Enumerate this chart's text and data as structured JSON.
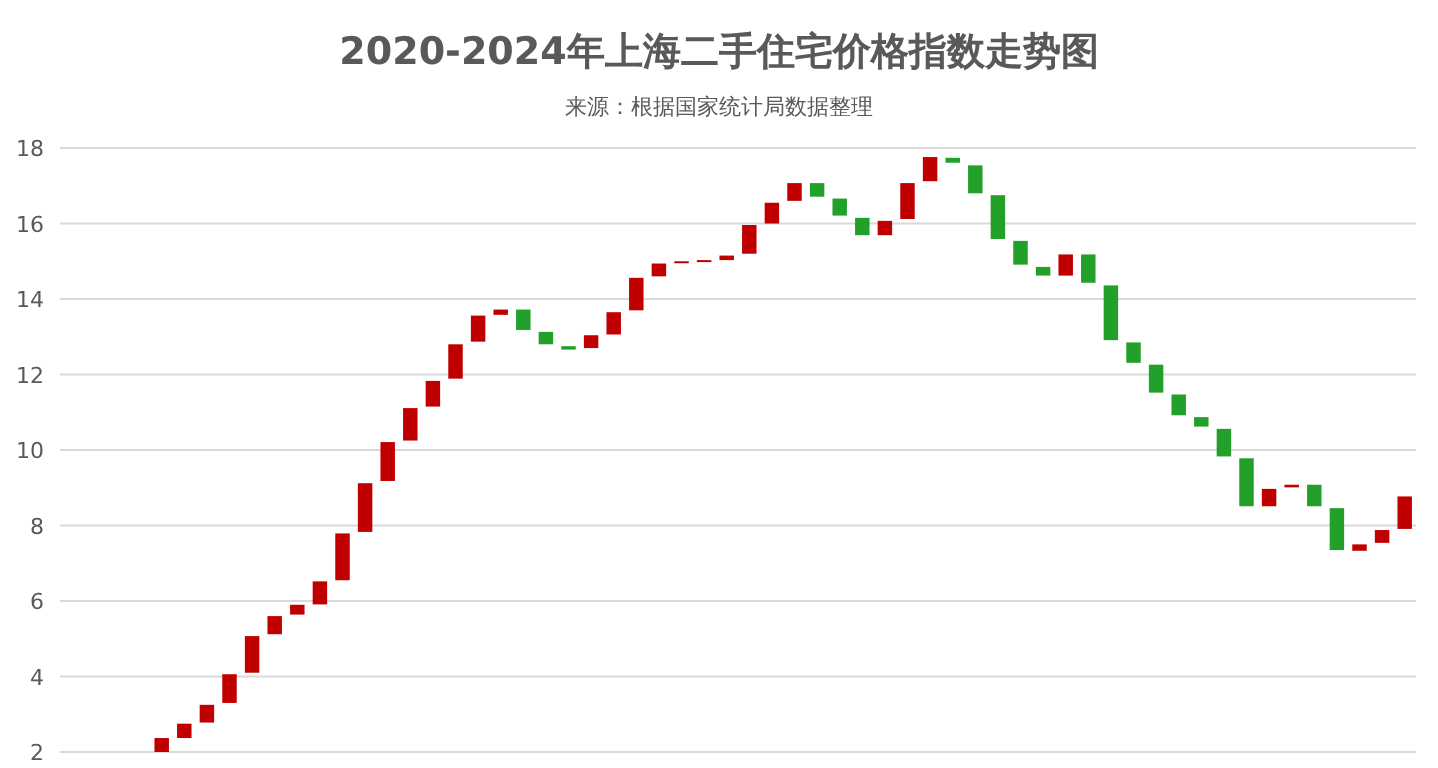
{
  "chart_data": {
    "type": "bar",
    "title": "2020-2024年上海二手住宅价格指数走势图",
    "annotations": [
      "来源：根据国家统计局数据整理"
    ],
    "categories": [
      null,
      null,
      null,
      null,
      null,
      null,
      null,
      null,
      null,
      null,
      null,
      null,
      null,
      null,
      null,
      null,
      null,
      null,
      null,
      null,
      null,
      null,
      null,
      null,
      null,
      null,
      null,
      null,
      null,
      null,
      null,
      null,
      null,
      null,
      null,
      null,
      null,
      null,
      null,
      null,
      null,
      null,
      null,
      null,
      null,
      null,
      null,
      null,
      null,
      null,
      null,
      null,
      null,
      null,
      null,
      null,
      null,
      null,
      null,
      null
    ],
    "base": [
      null,
      null,
      null,
      null,
      2.0,
      2.37,
      2.78,
      3.3,
      4.1,
      5.12,
      5.64,
      5.91,
      6.55,
      7.83,
      9.18,
      10.25,
      11.15,
      11.89,
      12.87,
      13.58,
      13.72,
      13.13,
      12.75,
      12.7,
      13.06,
      13.7,
      14.6,
      14.96,
      15.0,
      15.03,
      15.2,
      16.0,
      16.6,
      17.07,
      16.66,
      16.15,
      15.69,
      16.12,
      17.12,
      17.74,
      17.54,
      16.75,
      15.54,
      14.85,
      14.62,
      15.18,
      14.36,
      12.85,
      12.26,
      11.47,
      10.87,
      10.56,
      9.78,
      8.51,
      9.01,
      9.08,
      8.46,
      7.33,
      7.54,
      7.91
    ],
    "values": [
      null,
      null,
      null,
      null,
      0.37,
      0.38,
      0.47,
      0.76,
      0.97,
      0.48,
      0.26,
      0.61,
      1.24,
      1.29,
      1.03,
      0.86,
      0.68,
      0.91,
      0.69,
      0.14,
      -0.54,
      -0.33,
      -0.09,
      0.34,
      0.59,
      0.86,
      0.34,
      0.04,
      0.03,
      0.12,
      0.76,
      0.55,
      0.47,
      -0.36,
      -0.45,
      -0.46,
      0.38,
      0.95,
      0.64,
      -0.13,
      -0.74,
      -1.16,
      -0.63,
      -0.23,
      0.56,
      -0.75,
      -1.45,
      -0.54,
      -0.74,
      -0.55,
      -0.25,
      -0.73,
      -1.27,
      0.46,
      0.07,
      -0.57,
      -1.11,
      0.17,
      0.34,
      0.86
    ],
    "colors": [
      null,
      null,
      null,
      null,
      "#c00000",
      "#c00000",
      "#c00000",
      "#c00000",
      "#c00000",
      "#c00000",
      "#c00000",
      "#c00000",
      "#c00000",
      "#c00000",
      "#c00000",
      "#c00000",
      "#c00000",
      "#c00000",
      "#c00000",
      "#c00000",
      "#22a02a",
      "#22a02a",
      "#22a02a",
      "#c00000",
      "#c00000",
      "#c00000",
      "#c00000",
      "#c00000",
      "#c00000",
      "#c00000",
      "#c00000",
      "#c00000",
      "#c00000",
      "#22a02a",
      "#22a02a",
      "#22a02a",
      "#c00000",
      "#c00000",
      "#c00000",
      "#22a02a",
      "#22a02a",
      "#22a02a",
      "#22a02a",
      "#22a02a",
      "#c00000",
      "#22a02a",
      "#22a02a",
      "#22a02a",
      "#22a02a",
      "#22a02a",
      "#22a02a",
      "#22a02a",
      "#22a02a",
      "#c00000",
      "#c00000",
      "#22a02a",
      "#22a02a",
      "#c00000",
      "#c00000",
      "#c00000"
    ],
    "ylim": [
      2,
      18
    ],
    "yticks": [
      2,
      4,
      6,
      8,
      10,
      12,
      14,
      16,
      18
    ],
    "grid": "y"
  }
}
